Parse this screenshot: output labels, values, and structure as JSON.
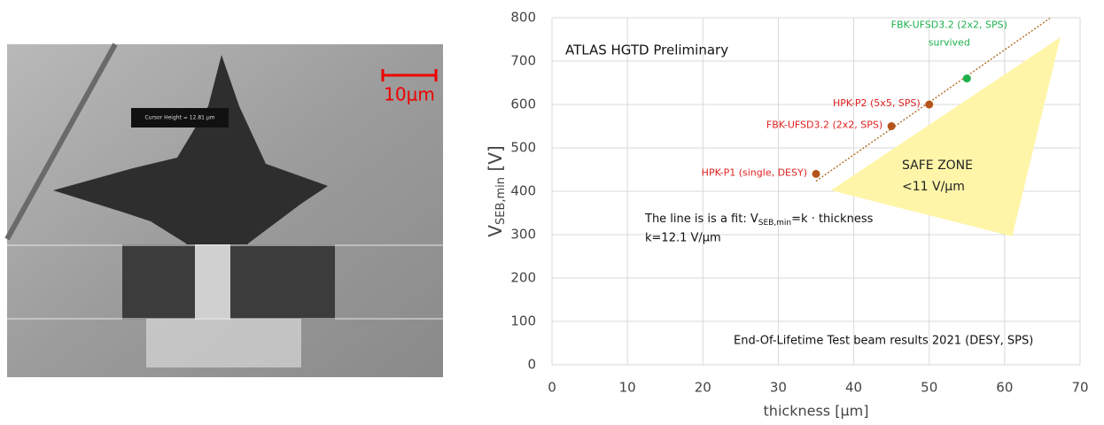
{
  "image": {
    "scale_label": "10μm",
    "cursor_label": "Cursor Height = 12.81 μm"
  },
  "chart_data": {
    "type": "scatter",
    "title": "ATLAS HGTD Preliminary",
    "xlabel": "thickness [μm]",
    "ylabel": {
      "main": "V",
      "sub": "SEB,min",
      "suffix": " [V]"
    },
    "xlim": [
      0,
      70
    ],
    "xticks": [
      0,
      10,
      20,
      30,
      40,
      50,
      60,
      70
    ],
    "ylim": [
      0,
      800
    ],
    "yticks": [
      0,
      100,
      200,
      300,
      400,
      500,
      600,
      700,
      800
    ],
    "grid": true,
    "points": [
      {
        "x": 35,
        "y": 440,
        "label": [
          "HPK-P1 (single, DESY)"
        ],
        "color": "#b5541a",
        "label_color": "#e02020"
      },
      {
        "x": 45,
        "y": 550,
        "label": [
          "FBK-UFSD3.2 (2x2, SPS)"
        ],
        "color": "#b5541a",
        "label_color": "#e02020"
      },
      {
        "x": 50,
        "y": 600,
        "label": [
          "HPK-P2 (5x5, SPS)"
        ],
        "color": "#b5541a",
        "label_color": "#e02020"
      },
      {
        "x": 55,
        "y": 660,
        "label": [
          "FBK-UFSD3.2 (2x2, SPS)",
          "survived"
        ],
        "color": "#1db04e",
        "label_color": "#1db04e"
      }
    ],
    "fit": {
      "x": [
        35,
        66
      ],
      "y": [
        423.5,
        798.6
      ],
      "color": "#b5762f"
    },
    "fit_text": {
      "pre": "The line is is a fit: V",
      "sub": "SEB,min",
      "post": "=k · thickness",
      "line2": "k=12.1 V/μm"
    },
    "safe_zone": {
      "x": [
        37,
        67.4,
        61
      ],
      "y": [
        402,
        755,
        296
      ],
      "color": "#fff5a8",
      "label": [
        "SAFE ZONE",
        "<11 V/μm"
      ]
    },
    "footnote": "End-Of-Lifetime Test beam results 2021 (DESY, SPS)"
  }
}
